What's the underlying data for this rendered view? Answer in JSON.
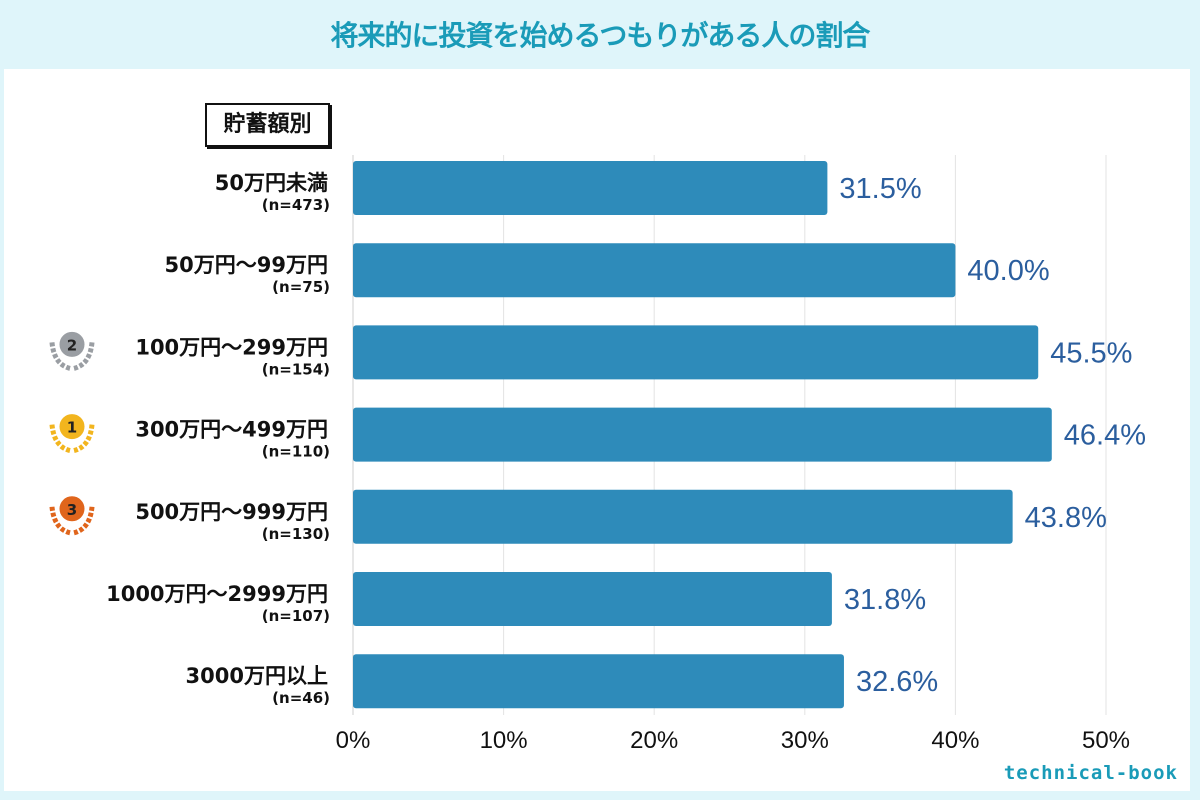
{
  "title": "将来的に投資を始めるつもりがある人の割合",
  "logo": "technical-book",
  "chart_data": {
    "type": "bar",
    "orientation": "horizontal",
    "title": "将来的に投資を始めるつもりがある人の割合",
    "group_label": "貯蓄額別",
    "categories": [
      "50万円未満",
      "50万円～99万円",
      "100万円～299万円",
      "300万円～499万円",
      "500万円～999万円",
      "1000万円～2999万円",
      "3000万円以上"
    ],
    "sample_sizes": [
      "(n=473)",
      "(n=75)",
      "(n=154)",
      "(n=110)",
      "(n=130)",
      "(n=107)",
      "(n=46)"
    ],
    "ranks": [
      null,
      null,
      2,
      1,
      3,
      null,
      null
    ],
    "values": [
      31.5,
      40.0,
      45.5,
      46.4,
      43.8,
      31.8,
      32.6
    ],
    "value_labels": [
      "31.5%",
      "40.0%",
      "45.5%",
      "46.4%",
      "43.8%",
      "31.8%",
      "32.6%"
    ],
    "xlim": [
      0,
      50
    ],
    "x_ticks": [
      "0%",
      "10%",
      "20%",
      "30%",
      "40%",
      "50%"
    ],
    "grid": true,
    "bar_color": "#2e8bba",
    "value_label_color": "#2b5e9e",
    "title_color": "#1a9bb8",
    "medal_colors": {
      "1": "#f2b51e",
      "2": "#9a9ea3",
      "3": "#e0651c"
    }
  }
}
